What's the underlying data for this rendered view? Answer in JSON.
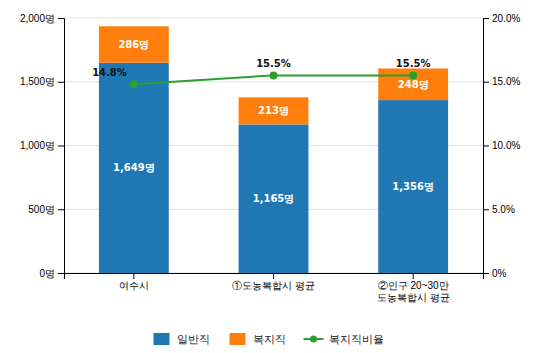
{
  "chart_data": {
    "type": "bar",
    "stacked": true,
    "categories": [
      "여수시",
      "①도농복합시 평균",
      "②인구 20~30만\n도농복합시 평균"
    ],
    "series": [
      {
        "name": "일반직",
        "type": "bar",
        "values": [
          1649,
          1165,
          1356
        ],
        "value_labels": [
          "1,649명",
          "1,165명",
          "1,356명"
        ]
      },
      {
        "name": "복지직",
        "type": "bar",
        "values": [
          286,
          213,
          248
        ],
        "value_labels": [
          "286명",
          "213명",
          "248명"
        ]
      },
      {
        "name": "복지직비율",
        "type": "line",
        "axis": "y2",
        "marker": "circle",
        "values": [
          14.8,
          15.5,
          15.5
        ],
        "value_labels": [
          "14.8%",
          "15.5%",
          "15.5%"
        ]
      }
    ],
    "ylim": [
      0,
      2000
    ],
    "yticks": [
      {
        "value": 0,
        "label": "0명"
      },
      {
        "value": 500,
        "label": "500명"
      },
      {
        "value": 1000,
        "label": "1,000명"
      },
      {
        "value": 1500,
        "label": "1,500명"
      },
      {
        "value": 2000,
        "label": "2,000명"
      }
    ],
    "y2lim": [
      0,
      20.0
    ],
    "y2ticks": [
      {
        "value": 0,
        "label": "0%"
      },
      {
        "value": 5.0,
        "label": "5.0%"
      },
      {
        "value": 10.0,
        "label": "10.0%"
      },
      {
        "value": 15.0,
        "label": "15.0%"
      },
      {
        "value": 20.0,
        "label": "20.0%"
      }
    ],
    "grid": true,
    "legend": "bottom",
    "data_labels": true
  }
}
